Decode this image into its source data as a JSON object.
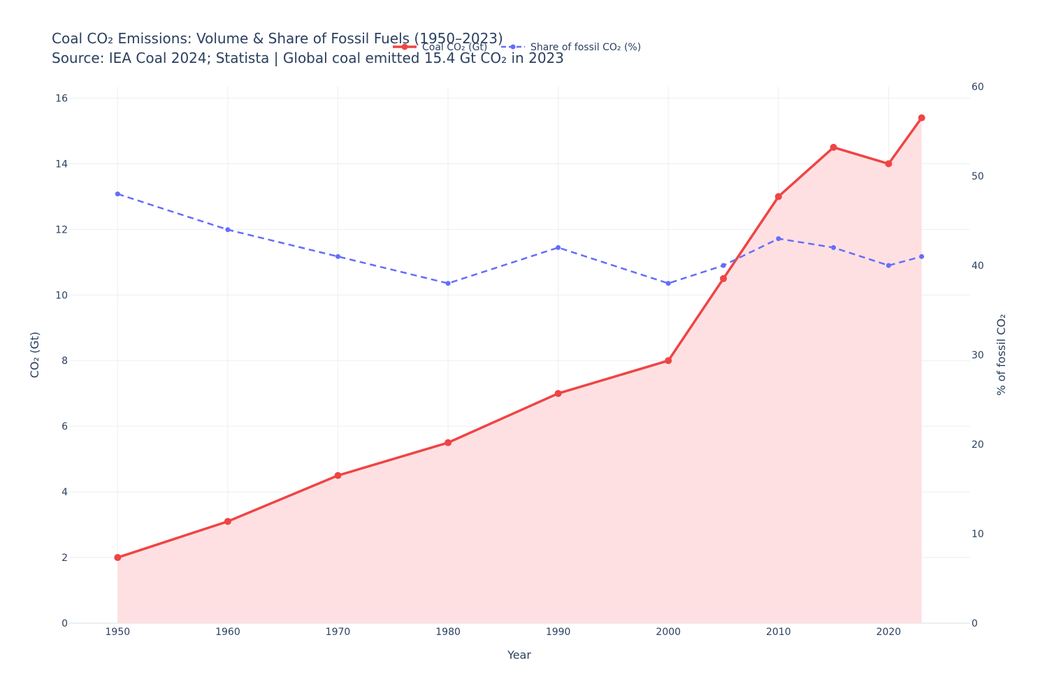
{
  "chart_data": {
    "type": "line",
    "title": "Coal CO₂ Emissions: Volume & Share of Fossil Fuels (1950–2023)",
    "subtitle": "Source: IEA Coal 2024; Statista | Global coal emitted 15.4 Gt CO₂ in 2023",
    "xlabel": "Year",
    "ylabel": "CO₂ (Gt)",
    "y2label": "% of fossil CO₂",
    "x": [
      1950,
      1960,
      1970,
      1980,
      1990,
      2000,
      2005,
      2010,
      2015,
      2020,
      2023
    ],
    "xlim": [
      1945.6,
      2027.4
    ],
    "ylim": [
      0,
      16.35
    ],
    "y2lim": [
      0,
      60
    ],
    "x_ticks": [
      1950,
      1960,
      1970,
      1980,
      1990,
      2000,
      2010,
      2020
    ],
    "y_ticks": [
      0,
      2,
      4,
      6,
      8,
      10,
      12,
      14,
      16
    ],
    "y2_ticks": [
      0,
      10,
      20,
      30,
      40,
      50,
      60
    ],
    "grid": true,
    "legend_position": "top-center",
    "series": [
      {
        "name": "Coal CO₂ (Gt)",
        "axis": "y",
        "color": "#ef4444",
        "fill": "#fee0e2",
        "style": "solid",
        "values": [
          2.0,
          3.1,
          4.5,
          5.5,
          7.0,
          8.0,
          10.5,
          13.0,
          14.5,
          14.0,
          15.4
        ]
      },
      {
        "name": "Share of fossil CO₂ (%)",
        "axis": "y2",
        "color": "#636efa",
        "style": "dashed",
        "values": [
          48,
          44,
          41,
          38,
          42,
          38,
          40,
          43,
          42,
          40,
          41
        ]
      }
    ]
  }
}
